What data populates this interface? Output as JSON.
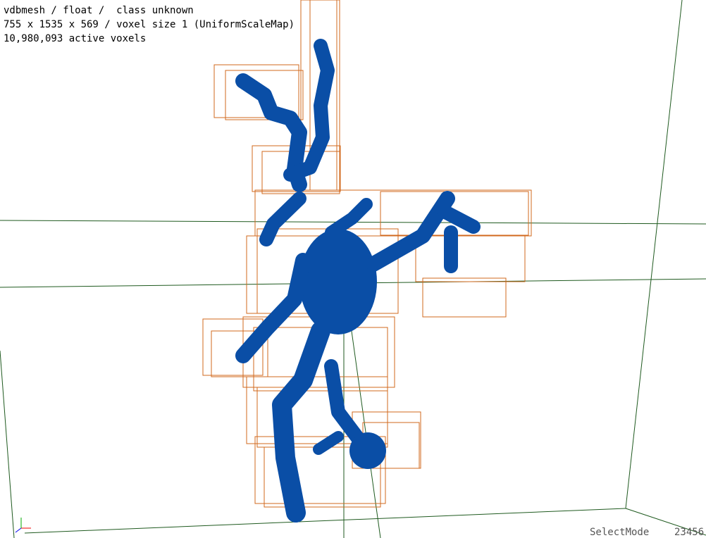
{
  "info": {
    "lines": [
      "vdbmesh / float /  class unknown",
      "755 x 1535 x 569 / voxel size 1 (UniformScaleMap)",
      "10,980,093 active voxels"
    ]
  },
  "status": {
    "mode": "SelectMode",
    "counter": "23456"
  }
}
